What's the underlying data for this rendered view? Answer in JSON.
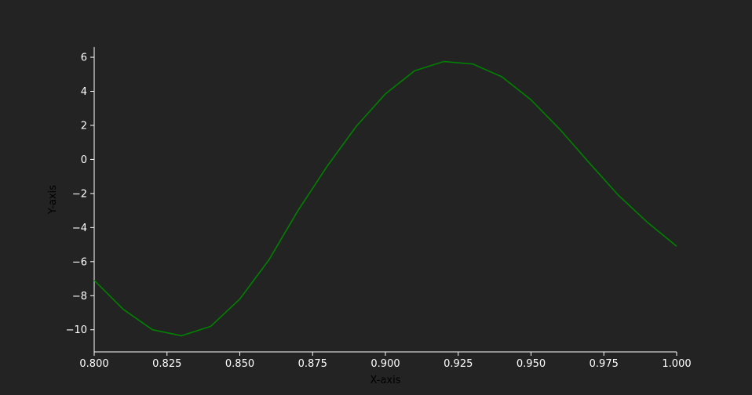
{
  "chart_data": {
    "type": "line",
    "title": "",
    "xlabel": "X-axis",
    "ylabel": "Y-axis",
    "xlim": [
      0.8,
      1.0
    ],
    "ylim": [
      -11.3,
      6.6
    ],
    "grid": false,
    "xticks": [
      0.8,
      0.825,
      0.85,
      0.875,
      0.9,
      0.925,
      0.95,
      0.975,
      1.0
    ],
    "xtick_labels": [
      "0.800",
      "0.825",
      "0.850",
      "0.875",
      "0.900",
      "0.925",
      "0.950",
      "0.975",
      "1.000"
    ],
    "yticks": [
      -10,
      -8,
      -6,
      -4,
      -2,
      0,
      2,
      4,
      6
    ],
    "ytick_labels": [
      "−10",
      "−8",
      "−6",
      "−4",
      "−2",
      "0",
      "2",
      "4",
      "6"
    ],
    "colors": {
      "background": "#232323",
      "axis": "#ffffff",
      "tick_label": "#ffffff",
      "axis_label": "#000000",
      "line": "#008000"
    },
    "series": [
      {
        "x": [
          0.8,
          0.81,
          0.82,
          0.83,
          0.84,
          0.85,
          0.86,
          0.87,
          0.88,
          0.89,
          0.9,
          0.91,
          0.92,
          0.93,
          0.94,
          0.95,
          0.96,
          0.97,
          0.98,
          0.99,
          1.0
        ],
        "y": [
          -7.1,
          -8.8,
          -10.0,
          -10.35,
          -9.8,
          -8.2,
          -5.9,
          -3.0,
          -0.4,
          1.95,
          3.85,
          5.2,
          5.75,
          5.6,
          4.85,
          3.5,
          1.75,
          -0.2,
          -2.1,
          -3.7,
          -5.1
        ]
      }
    ]
  }
}
